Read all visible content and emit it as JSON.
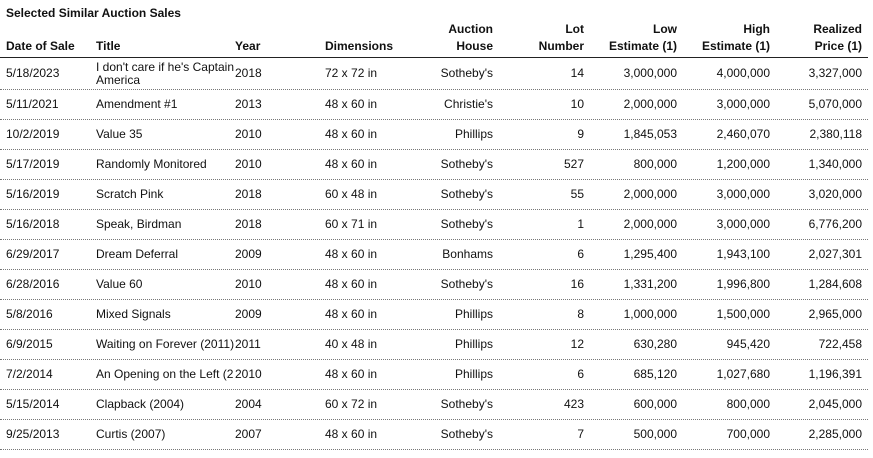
{
  "title": "Selected Similar Auction Sales",
  "columns": [
    "Date of Sale",
    "Title",
    "Year",
    "Dimensions",
    "Auction\nHouse",
    "Lot\nNumber",
    "Low\nEstimate (1)",
    "High\nEstimate (1)",
    "Realized\nPrice (1)"
  ],
  "headers": {
    "date": "Date of Sale",
    "title": "Title",
    "year": "Year",
    "dimensions": "Dimensions",
    "house_1": "Auction",
    "house_2": "House",
    "lot_1": "Lot",
    "lot_2": "Number",
    "low_1": "Low",
    "low_2": "Estimate (1)",
    "high_1": "High",
    "high_2": "Estimate (1)",
    "price_1": "Realized",
    "price_2": "Price (1)"
  },
  "rows": [
    [
      "5/18/2023",
      "I don't care if he's Captain America",
      "2018",
      "72 x 72 in",
      "Sotheby's",
      "14",
      "3,000,000",
      "4,000,000",
      "3,327,000"
    ],
    [
      "5/11/2021",
      "Amendment #1",
      "2013",
      "48 x 60 in",
      "Christie's",
      "10",
      "2,000,000",
      "3,000,000",
      "5,070,000"
    ],
    [
      "10/2/2019",
      "Value 35",
      "2010",
      "48 x 60 in",
      "Phillips",
      "9",
      "1,845,053",
      "2,460,070",
      "2,380,118"
    ],
    [
      "5/17/2019",
      "Randomly Monitored",
      "2010",
      "48 x 60 in",
      "Sotheby's",
      "527",
      "800,000",
      "1,200,000",
      "1,340,000"
    ],
    [
      "5/16/2019",
      "Scratch Pink",
      "2018",
      "60 x 48 in",
      "Sotheby's",
      "55",
      "2,000,000",
      "3,000,000",
      "3,020,000"
    ],
    [
      "5/16/2018",
      "Speak, Birdman",
      "2018",
      "60 x 71 in",
      "Sotheby's",
      "1",
      "2,000,000",
      "3,000,000",
      "6,776,200"
    ],
    [
      "6/29/2017",
      "Dream Deferral",
      "2009",
      "48 x 60 in",
      "Bonhams",
      "6",
      "1,295,400",
      "1,943,100",
      "2,027,301"
    ],
    [
      "6/28/2016",
      "Value 60",
      "2010",
      "48 x 60 in",
      "Sotheby's",
      "16",
      "1,331,200",
      "1,996,800",
      "1,284,608"
    ],
    [
      "5/8/2016",
      "Mixed Signals",
      "2009",
      "48 x 60 in",
      "Phillips",
      "8",
      "1,000,000",
      "1,500,000",
      "2,965,000"
    ],
    [
      "6/9/2015",
      "Waiting on Forever (2011)",
      "2011",
      "40 x 48 in",
      "Phillips",
      "12",
      "630,280",
      "945,420",
      "722,458"
    ],
    [
      "7/2/2014",
      "An Opening on the Left (2",
      "2010",
      "48 x 60 in",
      "Phillips",
      "6",
      "685,120",
      "1,027,680",
      "1,196,391"
    ],
    [
      "5/15/2014",
      "Clapback (2004)",
      "2004",
      "60 x 72 in",
      "Sotheby's",
      "423",
      "600,000",
      "800,000",
      "2,045,000"
    ],
    [
      "9/25/2013",
      "Curtis (2007)",
      "2007",
      "48 x 60 in",
      "Sotheby's",
      "7",
      "500,000",
      "700,000",
      "2,285,000"
    ]
  ]
}
